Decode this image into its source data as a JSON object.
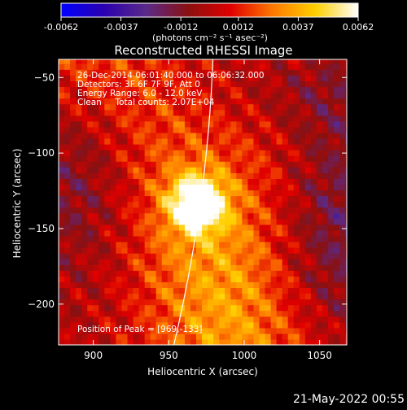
{
  "figure": {
    "timestamp": "21-May-2022 00:55"
  },
  "colorbar": {
    "tick_labels": [
      "-0.0062",
      "-0.0037",
      "-0.0012",
      "0.0012",
      "0.0037",
      "0.0062"
    ],
    "range": [
      -0.0062,
      0.0062
    ],
    "colormap": [
      "#0000ff",
      "#2a00b0",
      "#5a2a8a",
      "#8a1010",
      "#e00000",
      "#ff7a00",
      "#ffd000",
      "#ffffff"
    ]
  },
  "chart_data": {
    "type": "heatmap",
    "title": "Reconstructed RHESSI Image",
    "xlabel": "Heliocentric X (arcsec)",
    "ylabel": "Heliocentric Y (arcsec)",
    "xlim": [
      877,
      1068
    ],
    "ylim": [
      -227,
      -38
    ],
    "x_ticks": [
      900,
      950,
      1000,
      1050
    ],
    "y_ticks": [
      -50,
      -100,
      -150,
      -200
    ],
    "annotations": [
      "26-Dec-2014 06:01:40.000 to 06:06:32.000",
      "Detectors: 3F 6F 7F 9F, Att 0",
      "Energy Range: 6.0 - 12.0 keV",
      "Clean     Total counts: 2.07E+04"
    ],
    "peak_label": "Position of Peak = [969,-133]",
    "peak": {
      "x": 969,
      "y": -133
    },
    "limb_color": "#ffffff",
    "colorbar_units": "(photons cm⁻² s⁻¹ asec⁻²)",
    "value_range": [
      -0.0062,
      0.0062
    ]
  }
}
